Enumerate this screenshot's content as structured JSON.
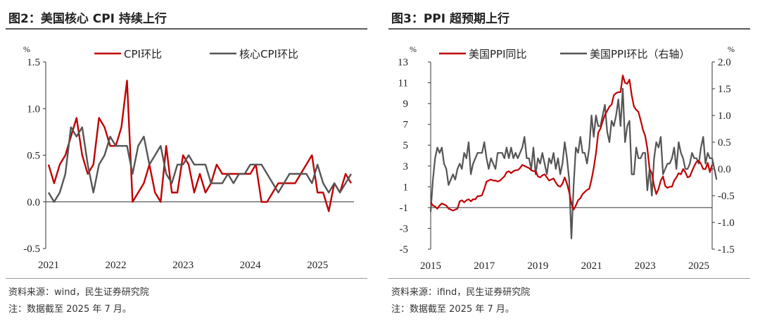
{
  "left": {
    "title": "图2：美国核心 CPI 持续上行",
    "source": "资料来源：wind，民生证券研究院",
    "note": "注：数据截至 2025 年 7 月。"
  },
  "right": {
    "title": "图3：PPI 超预期上行",
    "source": "资料来源：ifind，民生证券研究院",
    "note": "注：数据截至 2025 年 7 月。"
  },
  "chart_data": [
    {
      "type": "line",
      "title": "",
      "ylabel": "%",
      "ylim": [
        -0.5,
        1.5
      ],
      "yticks": [
        "1.5",
        "1.0",
        "0.5",
        "0.0",
        "-0.5"
      ],
      "xticks": [
        "2021",
        "2022",
        "2023",
        "2024",
        "2025"
      ],
      "legend_position": "top",
      "grid": false,
      "colors": {
        "CPI环比": "#c00000",
        "核心CPI环比": "#555555"
      },
      "x": [
        "2021-01",
        "2021-02",
        "2021-03",
        "2021-04",
        "2021-05",
        "2021-06",
        "2021-07",
        "2021-08",
        "2021-09",
        "2021-10",
        "2021-11",
        "2021-12",
        "2022-01",
        "2022-02",
        "2022-03",
        "2022-04",
        "2022-05",
        "2022-06",
        "2022-07",
        "2022-08",
        "2022-09",
        "2022-10",
        "2022-11",
        "2022-12",
        "2023-01",
        "2023-02",
        "2023-03",
        "2023-04",
        "2023-05",
        "2023-06",
        "2023-07",
        "2023-08",
        "2023-09",
        "2023-10",
        "2023-11",
        "2023-12",
        "2024-01",
        "2024-02",
        "2024-03",
        "2024-04",
        "2024-05",
        "2024-06",
        "2024-07",
        "2024-08",
        "2024-09",
        "2024-10",
        "2024-11",
        "2024-12",
        "2025-01",
        "2025-02",
        "2025-03",
        "2025-04",
        "2025-05",
        "2025-06",
        "2025-07"
      ],
      "series": [
        {
          "name": "CPI环比",
          "values": [
            0.4,
            0.2,
            0.4,
            0.5,
            0.7,
            0.9,
            0.5,
            0.3,
            0.4,
            0.9,
            0.8,
            0.6,
            0.6,
            0.8,
            1.3,
            0.0,
            0.1,
            0.2,
            0.4,
            0.1,
            0.0,
            0.6,
            0.1,
            0.1,
            0.5,
            0.4,
            0.1,
            0.3,
            0.1,
            0.2,
            0.4,
            0.3,
            0.3,
            0.3,
            0.3,
            0.3,
            0.3,
            0.4,
            0.0,
            0.0,
            0.1,
            0.2,
            0.2,
            0.2,
            0.2,
            0.3,
            0.4,
            0.5,
            0.1,
            0.1,
            -0.1,
            0.2,
            0.1,
            0.3,
            0.2
          ]
        },
        {
          "name": "核心CPI环比",
          "values": [
            0.1,
            0.0,
            0.1,
            0.3,
            0.8,
            0.7,
            0.8,
            0.4,
            0.1,
            0.4,
            0.5,
            0.7,
            0.6,
            0.6,
            0.6,
            0.3,
            0.6,
            0.7,
            0.4,
            0.5,
            0.6,
            0.3,
            0.2,
            0.4,
            0.4,
            0.5,
            0.4,
            0.4,
            0.4,
            0.2,
            0.2,
            0.2,
            0.3,
            0.2,
            0.3,
            0.3,
            0.4,
            0.4,
            0.4,
            0.3,
            0.2,
            0.1,
            0.2,
            0.3,
            0.3,
            0.3,
            0.3,
            0.2,
            0.4,
            0.2,
            0.1,
            0.2,
            0.1,
            0.2,
            0.3
          ]
        }
      ]
    },
    {
      "type": "line",
      "title": "",
      "ylabel": "%",
      "y2label": "%",
      "ylim": [
        -5,
        13
      ],
      "y2lim": [
        -1.5,
        2.0
      ],
      "yticks": [
        "13",
        "11",
        "9",
        "7",
        "5",
        "3",
        "1",
        "-1",
        "-3",
        "-5"
      ],
      "y2ticks": [
        "2.0",
        "1.5",
        "1.0",
        "0.5",
        "0.0",
        "-0.5",
        "-1.0",
        "-1.5"
      ],
      "xticks": [
        "2015",
        "2017",
        "2019",
        "2021",
        "2023",
        "2025"
      ],
      "legend_position": "top",
      "grid": false,
      "colors": {
        "美国PPI同比": "#c00000",
        "美国PPI环比（右轴）": "#555555"
      },
      "x_start": "2015-01",
      "series": [
        {
          "name": "美国PPI同比",
          "axis": "left",
          "values": [
            -0.5,
            -0.8,
            -0.9,
            -1.1,
            -0.8,
            -0.6,
            -0.7,
            -0.8,
            -1.1,
            -1.2,
            -1.3,
            -1.2,
            -1.1,
            -0.4,
            -0.3,
            -0.5,
            -0.3,
            -0.2,
            -0.4,
            -0.2,
            -0.2,
            0.1,
            0.1,
            0.2,
            0.8,
            1.5,
            1.6,
            1.7,
            1.6,
            1.6,
            1.5,
            1.6,
            1.8,
            2.0,
            2.4,
            2.5,
            2.3,
            2.5,
            2.6,
            2.6,
            2.8,
            3.1,
            3.0,
            2.9,
            2.8,
            2.6,
            2.5,
            2.5,
            2.0,
            1.9,
            2.1,
            2.2,
            1.9,
            1.6,
            1.7,
            1.8,
            1.4,
            1.1,
            1.0,
            1.3,
            1.9,
            1.3,
            0.5,
            -0.6,
            -1.2,
            -0.8,
            -0.3,
            -0.1,
            0.3,
            0.5,
            0.7,
            0.8,
            1.7,
            2.8,
            4.2,
            6.2,
            6.6,
            7.3,
            7.9,
            8.3,
            8.7,
            8.9,
            9.8,
            10.0,
            10.1,
            10.1,
            11.7,
            11.0,
            10.9,
            11.3,
            9.8,
            8.7,
            8.4,
            8.2,
            7.4,
            6.5,
            5.9,
            4.7,
            2.7,
            2.3,
            1.1,
            0.3,
            0.8,
            1.6,
            2.0,
            1.1,
            0.9,
            1.0,
            1.0,
            1.6,
            1.9,
            2.3,
            2.2,
            2.7,
            2.4,
            1.9,
            2.0,
            2.5,
            3.0,
            3.4,
            3.5,
            3.2,
            2.7,
            2.7,
            3.3,
            2.4,
            3.1
          ]
        },
        {
          "name": "美国PPI环比（右轴）",
          "axis": "right",
          "values": [
            -0.8,
            -0.2,
            0.2,
            0.4,
            0.3,
            0.4,
            0.1,
            0.0,
            -0.3,
            -0.2,
            -0.1,
            -0.2,
            0.0,
            0.1,
            0.0,
            0.3,
            0.2,
            0.5,
            -0.1,
            0.1,
            0.2,
            0.3,
            0.3,
            0.3,
            0.5,
            0.2,
            0.0,
            0.2,
            0.1,
            0.0,
            0.3,
            0.3,
            0.3,
            0.2,
            0.4,
            0.2,
            0.4,
            0.2,
            0.3,
            0.2,
            0.3,
            0.4,
            0.6,
            0.2,
            0.2,
            0.0,
            0.4,
            -0.1,
            0.2,
            0.1,
            0.3,
            0.1,
            -0.1,
            0.2,
            0.1,
            0.3,
            0.0,
            0.2,
            -0.1,
            0.1,
            0.5,
            0.2,
            -0.2,
            -1.3,
            -0.3,
            0.4,
            0.3,
            0.6,
            0.3,
            0.3,
            0.1,
            0.4,
            1.0,
            0.6,
            1.0,
            0.8,
            0.8,
            1.0,
            1.2,
            0.7,
            0.5,
            0.9,
            0.8,
            1.0,
            1.3,
            0.8,
            1.5,
            0.5,
            0.8,
            0.9,
            -0.1,
            -0.1,
            0.4,
            0.2,
            0.2,
            0.3,
            0.3,
            -0.4,
            0.0,
            -0.5,
            0.2,
            0.5,
            0.4,
            0.6,
            -0.1,
            0.0,
            0.1,
            0.1,
            0.2,
            0.4,
            0.0,
            0.5,
            0.3,
            0.2,
            0.0,
            0.0,
            0.1,
            0.3,
            0.2,
            0.2,
            0.1,
            0.4,
            0.6,
            0.1,
            0.3,
            0.2,
            0.2,
            0.0,
            -0.2
          ]
        }
      ]
    }
  ]
}
